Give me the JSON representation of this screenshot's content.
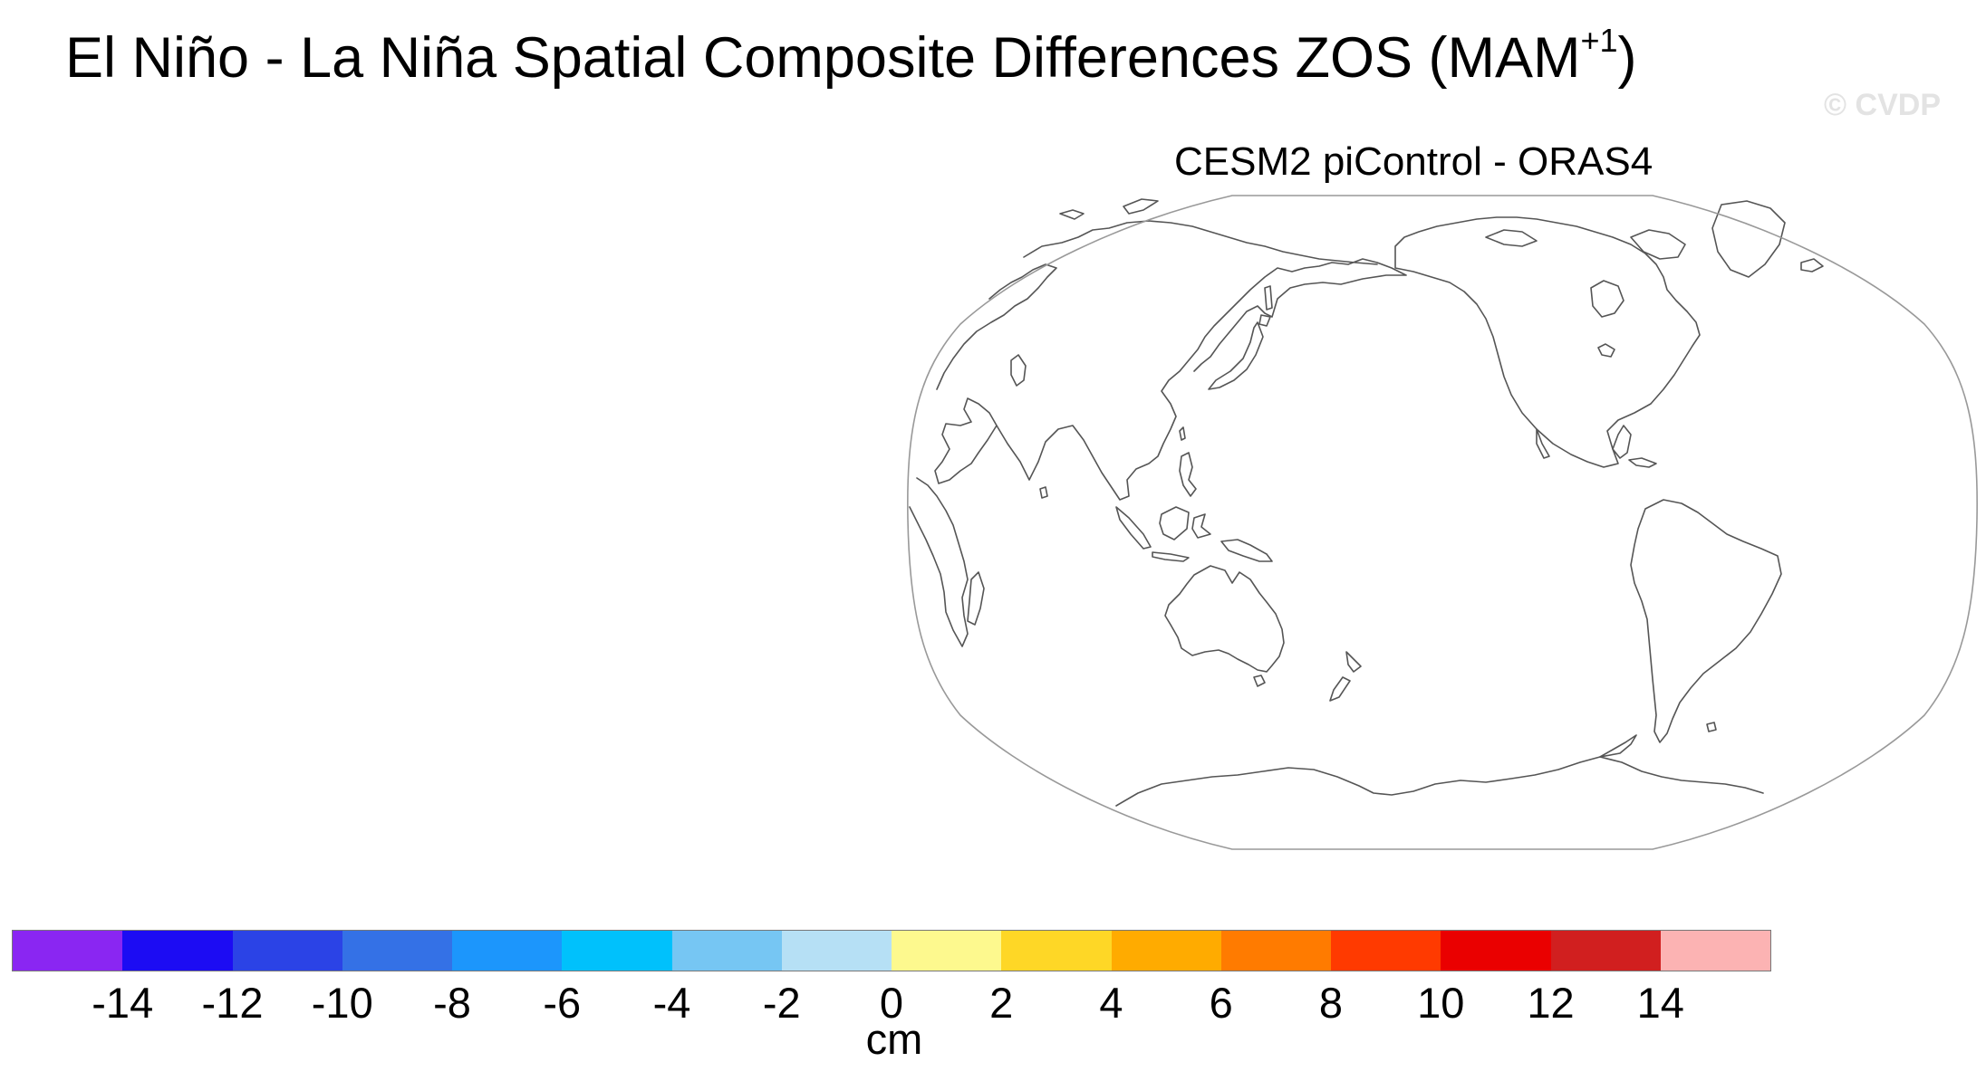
{
  "title": {
    "main": "El Niño - La Niña Spatial Composite Differences ZOS (MAM",
    "superscript": "+1",
    "close": ")"
  },
  "watermark": "© CVDP",
  "panel": {
    "subtitle": "CESM2 piControl - ORAS4"
  },
  "colorbar": {
    "colors": [
      "#8a26f2",
      "#1c0cf3",
      "#2b43e6",
      "#3471e6",
      "#1c96fc",
      "#00c1fc",
      "#76c6f3",
      "#b6e0f5",
      "#fdf98e",
      "#fed726",
      "#ffab00",
      "#ff7b00",
      "#ff3a00",
      "#ea0000",
      "#d11f1f",
      "#fcb3b3"
    ],
    "tick_labels": [
      "-14",
      "-12",
      "-10",
      "-8",
      "-6",
      "-4",
      "-2",
      "0",
      "2",
      "4",
      "6",
      "8",
      "10",
      "12",
      "14"
    ],
    "unit": "cm"
  },
  "map_colors": {
    "coast": "#555555",
    "frame": "#999999"
  }
}
